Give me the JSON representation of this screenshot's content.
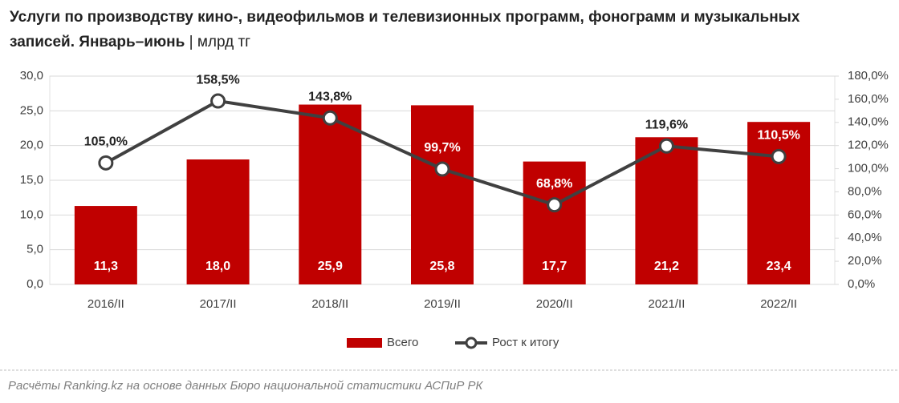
{
  "chart_data": {
    "type": "bar",
    "title": "Услуги по производству кино-, видеофильмов и телевизионных программ, фонограмм и музыкальных записей. Январь–июнь",
    "unit": "| млрд тг",
    "source": "Расчёты Ranking.kz на основе данных Бюро национальной статистики АСПиР РК",
    "categories": [
      "2016/II",
      "2017/II",
      "2018/II",
      "2019/II",
      "2020/II",
      "2021/II",
      "2022/II"
    ],
    "series": [
      {
        "name": "Всего",
        "type": "bar",
        "color": "#c00000",
        "values": [
          11.3,
          18.0,
          25.9,
          25.8,
          17.7,
          21.2,
          23.4
        ],
        "value_labels": [
          "11,3",
          "18,0",
          "25,9",
          "25,8",
          "17,7",
          "21,2",
          "23,4"
        ]
      },
      {
        "name": "Рост к итогу",
        "type": "line",
        "axis": "y2",
        "color": "#404040",
        "values": [
          105.0,
          158.5,
          143.8,
          99.7,
          68.8,
          119.6,
          110.5
        ],
        "value_labels": [
          "105,0%",
          "158,5%",
          "143,8%",
          "99,7%",
          "68,8%",
          "119,6%",
          "110,5%"
        ]
      }
    ],
    "ylim": [
      0,
      30
    ],
    "yticks": [
      {
        "value": 0,
        "label": "0,0"
      },
      {
        "value": 5,
        "label": "5,0"
      },
      {
        "value": 10,
        "label": "10,0"
      },
      {
        "value": 15,
        "label": "15,0"
      },
      {
        "value": 20,
        "label": "20,0"
      },
      {
        "value": 25,
        "label": "25,0"
      },
      {
        "value": 30,
        "label": "30,0"
      }
    ],
    "y2lim": [
      0,
      180
    ],
    "y2ticks": [
      {
        "value": 0,
        "label": "0,0%"
      },
      {
        "value": 20,
        "label": "20,0%"
      },
      {
        "value": 40,
        "label": "40,0%"
      },
      {
        "value": 60,
        "label": "60,0%"
      },
      {
        "value": 80,
        "label": "80,0%"
      },
      {
        "value": 100,
        "label": "100,0%"
      },
      {
        "value": 120,
        "label": "120,0%"
      },
      {
        "value": 140,
        "label": "140,0%"
      },
      {
        "value": 160,
        "label": "160,0%"
      },
      {
        "value": 180,
        "label": "180,0%"
      }
    ],
    "grid": true,
    "legend": "bottom"
  }
}
